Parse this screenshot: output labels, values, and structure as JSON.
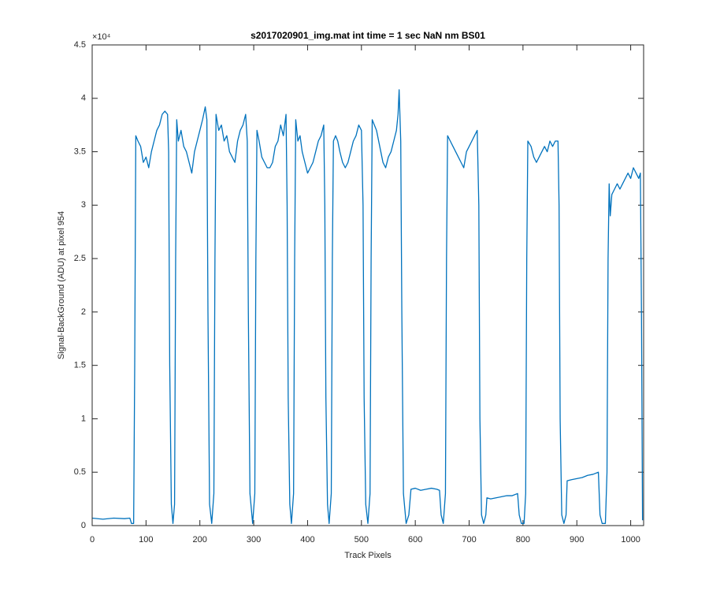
{
  "chart_data": {
    "type": "line",
    "title": "s2017020901_img.mat int time = 1 sec  NaN nm BS01",
    "xlabel": "Track Pixels",
    "ylabel": "Signal-BackGround (ADU) at pixel 954",
    "y_exponent": "×10⁴",
    "xlim": [
      0,
      1024
    ],
    "xticks": [
      0,
      100,
      200,
      300,
      400,
      500,
      600,
      700,
      800,
      900,
      1000
    ],
    "ylim": [
      0,
      4.5
    ],
    "yticks": [
      0,
      0.5,
      1,
      1.5,
      2,
      2.5,
      3,
      3.5,
      4,
      4.5
    ],
    "grid": false,
    "x": [
      0,
      20,
      40,
      60,
      70,
      73,
      77,
      79,
      81,
      85,
      90,
      95,
      100,
      105,
      110,
      115,
      120,
      125,
      130,
      135,
      140,
      142,
      144,
      147,
      150,
      153,
      155,
      157,
      160,
      165,
      170,
      175,
      180,
      185,
      190,
      195,
      200,
      205,
      210,
      213,
      215,
      218,
      222,
      226,
      228,
      230,
      235,
      240,
      245,
      250,
      255,
      260,
      265,
      270,
      275,
      280,
      285,
      288,
      290,
      293,
      298,
      302,
      304,
      306,
      310,
      315,
      320,
      325,
      330,
      335,
      340,
      345,
      350,
      355,
      360,
      362,
      364,
      367,
      370,
      374,
      376,
      378,
      382,
      386,
      390,
      395,
      400,
      405,
      410,
      415,
      420,
      425,
      430,
      432,
      434,
      437,
      440,
      444,
      446,
      448,
      452,
      456,
      460,
      465,
      470,
      475,
      480,
      485,
      490,
      495,
      500,
      503,
      505,
      508,
      512,
      516,
      518,
      520,
      524,
      528,
      532,
      536,
      540,
      545,
      550,
      555,
      560,
      565,
      568,
      570,
      573,
      575,
      578,
      583,
      588,
      592,
      600,
      610,
      620,
      630,
      640,
      645,
      648,
      652,
      656,
      658,
      660,
      665,
      670,
      675,
      680,
      685,
      690,
      695,
      700,
      705,
      710,
      715,
      718,
      720,
      723,
      727,
      731,
      733,
      740,
      750,
      760,
      770,
      780,
      790,
      793,
      797,
      802,
      805,
      807,
      809,
      815,
      820,
      825,
      830,
      835,
      840,
      845,
      850,
      855,
      860,
      865,
      867,
      869,
      872,
      876,
      880,
      882,
      890,
      900,
      910,
      920,
      930,
      940,
      943,
      947,
      953,
      956,
      958,
      960,
      962,
      965,
      970,
      975,
      980,
      985,
      990,
      995,
      1000,
      1005,
      1010,
      1015,
      1018,
      1020,
      1022
    ],
    "series": [
      {
        "name": "signal",
        "color": "#0072BD",
        "values": [
          0.07,
          0.06,
          0.07,
          0.065,
          0.07,
          0.02,
          0.02,
          1.5,
          3.65,
          3.6,
          3.55,
          3.4,
          3.45,
          3.35,
          3.5,
          3.6,
          3.7,
          3.75,
          3.85,
          3.88,
          3.85,
          3.5,
          1.5,
          0.2,
          0.02,
          0.2,
          2.5,
          3.8,
          3.6,
          3.7,
          3.55,
          3.5,
          3.4,
          3.3,
          3.5,
          3.6,
          3.7,
          3.8,
          3.92,
          3.8,
          2.0,
          0.2,
          0.02,
          0.3,
          2.5,
          3.85,
          3.7,
          3.75,
          3.6,
          3.65,
          3.5,
          3.45,
          3.4,
          3.6,
          3.7,
          3.75,
          3.85,
          3.6,
          2.0,
          0.3,
          0.02,
          0.3,
          2.5,
          3.7,
          3.6,
          3.45,
          3.4,
          3.35,
          3.35,
          3.4,
          3.55,
          3.6,
          3.75,
          3.65,
          3.85,
          3.0,
          1.2,
          0.2,
          0.02,
          0.3,
          2.5,
          3.8,
          3.6,
          3.65,
          3.5,
          3.4,
          3.3,
          3.35,
          3.4,
          3.5,
          3.6,
          3.65,
          3.75,
          3.0,
          1.2,
          0.2,
          0.02,
          0.3,
          2.5,
          3.6,
          3.65,
          3.6,
          3.5,
          3.4,
          3.35,
          3.4,
          3.5,
          3.6,
          3.65,
          3.75,
          3.7,
          3.0,
          1.2,
          0.2,
          0.02,
          0.3,
          2.5,
          3.8,
          3.75,
          3.7,
          3.6,
          3.5,
          3.4,
          3.35,
          3.45,
          3.5,
          3.6,
          3.7,
          3.85,
          4.08,
          3.6,
          2.0,
          0.3,
          0.02,
          0.1,
          0.34,
          0.35,
          0.33,
          0.34,
          0.35,
          0.34,
          0.33,
          0.1,
          0.02,
          0.3,
          2.5,
          3.65,
          3.6,
          3.55,
          3.5,
          3.45,
          3.4,
          3.35,
          3.5,
          3.55,
          3.6,
          3.65,
          3.7,
          3.0,
          1.0,
          0.1,
          0.02,
          0.1,
          0.26,
          0.25,
          0.26,
          0.27,
          0.28,
          0.28,
          0.3,
          0.1,
          0.02,
          0.02,
          0.3,
          2.5,
          3.6,
          3.55,
          3.45,
          3.4,
          3.45,
          3.5,
          3.55,
          3.5,
          3.6,
          3.55,
          3.6,
          3.6,
          3.0,
          1.0,
          0.1,
          0.02,
          0.1,
          0.42,
          0.43,
          0.44,
          0.45,
          0.47,
          0.48,
          0.5,
          0.1,
          0.02,
          0.02,
          0.5,
          2.5,
          3.2,
          2.9,
          3.1,
          3.15,
          3.2,
          3.15,
          3.2,
          3.25,
          3.3,
          3.25,
          3.35,
          3.3,
          3.25,
          3.3,
          2.0,
          0.05
        ]
      }
    ]
  }
}
